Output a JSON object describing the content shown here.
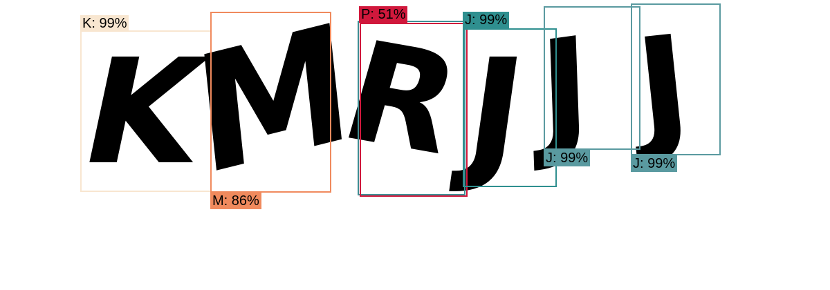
{
  "captcha": {
    "glyphs": [
      "K",
      "M",
      "R",
      "J",
      "J",
      "J"
    ]
  },
  "detections": [
    {
      "label": "K: 99%",
      "color": "#f8e6d0",
      "text_color": "#000000"
    },
    {
      "label": "M: 86%",
      "color": "#f08a5d",
      "text_color": "#000000"
    },
    {
      "label": "P: 51%",
      "color": "#d0183c",
      "text_color": "#000000"
    },
    {
      "label": "J: 99%",
      "color": "#2f8f8f",
      "text_color": "#000000"
    },
    {
      "label": "J: 99%",
      "color": "#5a9aa0",
      "text_color": "#000000"
    },
    {
      "label": "J: 99%",
      "color": "#5a9aa0",
      "text_color": "#000000"
    }
  ],
  "overlay_box_color": "#3f8f94"
}
